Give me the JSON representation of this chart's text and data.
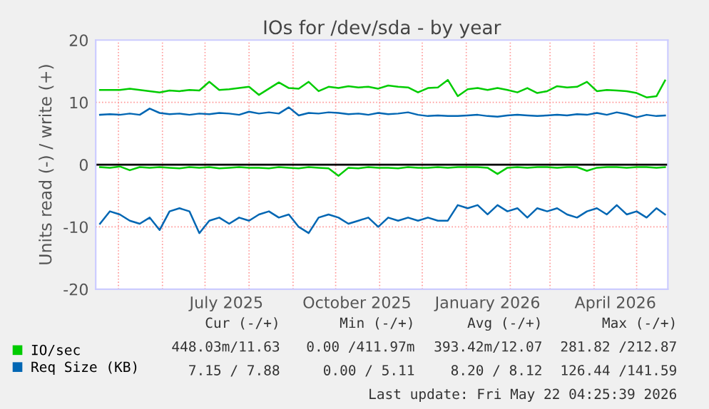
{
  "chart_data": {
    "type": "line",
    "title": "IOs for /dev/sda - by year",
    "ylabel": "Units read (-) / write (+)",
    "x": [
      "2025-04-18",
      "2025-04-25",
      "2025-05-02",
      "2025-05-09",
      "2025-05-16",
      "2025-05-23",
      "2025-05-30",
      "2025-06-06",
      "2025-06-13",
      "2025-06-20",
      "2025-06-27",
      "2025-07-04",
      "2025-07-11",
      "2025-07-18",
      "2025-07-25",
      "2025-08-01",
      "2025-08-08",
      "2025-08-15",
      "2025-08-22",
      "2025-08-29",
      "2025-09-05",
      "2025-09-12",
      "2025-09-19",
      "2025-09-26",
      "2025-10-03",
      "2025-10-10",
      "2025-10-17",
      "2025-10-24",
      "2025-10-31",
      "2025-11-07",
      "2025-11-14",
      "2025-11-21",
      "2025-11-28",
      "2025-12-05",
      "2025-12-12",
      "2025-12-19",
      "2025-12-26",
      "2026-01-02",
      "2026-01-09",
      "2026-01-16",
      "2026-01-23",
      "2026-01-30",
      "2026-02-06",
      "2026-02-13",
      "2026-02-20",
      "2026-02-27",
      "2026-03-06",
      "2026-03-13",
      "2026-03-20",
      "2026-03-27",
      "2026-04-03",
      "2026-04-10",
      "2026-04-17",
      "2026-04-24",
      "2026-05-01",
      "2026-05-08",
      "2026-05-15",
      "2026-05-21"
    ],
    "series": [
      {
        "name": "IO/sec",
        "color": "#00cc00",
        "values": [
          12,
          12,
          12,
          12.2,
          12,
          11.8,
          11.6,
          11.9,
          11.8,
          12,
          11.9,
          13.3,
          12,
          12.1,
          12.3,
          12.5,
          11.2,
          12.2,
          13.2,
          12.3,
          12.2,
          13.3,
          11.8,
          12.5,
          12.3,
          12.6,
          12.4,
          12.5,
          12.2,
          12.7,
          12.5,
          12.4,
          11.6,
          12.3,
          12.4,
          13.6,
          11,
          12.1,
          12.3,
          12,
          12.3,
          12,
          11.6,
          12.3,
          11.5,
          11.8,
          12.6,
          12.4,
          12.5,
          13.3,
          11.8,
          12,
          11.9,
          11.8,
          11.5,
          10.8,
          11,
          13.5
        ]
      },
      {
        "color": "#00cc00",
        "values": [
          -0.4,
          -0.5,
          -0.3,
          -0.9,
          -0.4,
          -0.5,
          -0.4,
          -0.5,
          -0.6,
          -0.4,
          -0.5,
          -0.4,
          -0.6,
          -0.5,
          -0.4,
          -0.5,
          -0.5,
          -0.6,
          -0.4,
          -0.5,
          -0.6,
          -0.4,
          -0.5,
          -0.6,
          -1.8,
          -0.5,
          -0.6,
          -0.4,
          -0.5,
          -0.5,
          -0.6,
          -0.4,
          -0.5,
          -0.5,
          -0.4,
          -0.5,
          -0.4,
          -0.4,
          -0.4,
          -0.5,
          -1.5,
          -0.5,
          -0.4,
          -0.5,
          -0.4,
          -0.4,
          -0.5,
          -0.4,
          -0.4,
          -1,
          -0.5,
          -0.4,
          -0.4,
          -0.5,
          -0.4,
          -0.4,
          -0.5,
          -0.4
        ]
      },
      {
        "name": "Req Size (KB)",
        "color": "#0066b3",
        "values": [
          8,
          8.1,
          8,
          8.2,
          8,
          9,
          8.3,
          8.1,
          8.2,
          8,
          8.2,
          8.1,
          8.3,
          8.2,
          8,
          8.5,
          8.2,
          8.4,
          8.2,
          9.2,
          7.9,
          8.3,
          8.2,
          8.4,
          8.3,
          8.1,
          8.2,
          8,
          8.3,
          8.1,
          8.2,
          8.4,
          8,
          7.8,
          7.9,
          7.8,
          7.8,
          7.9,
          8,
          7.8,
          7.7,
          7.9,
          8,
          7.9,
          7.8,
          7.9,
          8,
          7.9,
          8.1,
          8,
          8.3,
          8,
          8.4,
          8.1,
          7.6,
          8,
          7.8,
          7.9
        ]
      },
      {
        "color": "#0066b3",
        "values": [
          -9.5,
          -7.5,
          -8,
          -9,
          -9.5,
          -8.5,
          -10.5,
          -7.5,
          -7,
          -7.5,
          -11,
          -9,
          -8.5,
          -9.5,
          -8.5,
          -9,
          -8,
          -7.5,
          -8.5,
          -8,
          -10,
          -11,
          -8.5,
          -8,
          -8.5,
          -9.5,
          -9,
          -8.5,
          -10,
          -8.5,
          -9,
          -8.5,
          -9,
          -8.5,
          -9,
          -9,
          -6.5,
          -7,
          -6.5,
          -8,
          -6.5,
          -7.5,
          -7,
          -8.5,
          -7,
          -7.5,
          -7,
          -8,
          -8.5,
          -7.5,
          -7,
          -8,
          -6.5,
          -8,
          -7.5,
          -8.5,
          -7,
          -8
        ]
      }
    ],
    "xlim": [
      "2025-04-15",
      "2026-05-23"
    ],
    "xticks": [
      {
        "value": "2025-05-01",
        "label": null
      },
      {
        "value": "2025-06-01",
        "label": null
      },
      {
        "value": "2025-07-01",
        "label": null
      },
      {
        "value": "2025-07-16",
        "label": "July 2025"
      },
      {
        "value": "2025-08-01",
        "label": null
      },
      {
        "value": "2025-09-01",
        "label": null
      },
      {
        "value": "2025-10-01",
        "label": null
      },
      {
        "value": "2025-10-16",
        "label": "October 2025"
      },
      {
        "value": "2025-11-01",
        "label": null
      },
      {
        "value": "2025-12-01",
        "label": null
      },
      {
        "value": "2026-01-01",
        "label": null
      },
      {
        "value": "2026-01-16",
        "label": "January 2026"
      },
      {
        "value": "2026-02-01",
        "label": null
      },
      {
        "value": "2026-03-01",
        "label": null
      },
      {
        "value": "2026-04-01",
        "label": null
      },
      {
        "value": "2026-04-16",
        "label": "April 2026"
      },
      {
        "value": "2026-05-01",
        "label": null
      }
    ],
    "ylim": [
      -20,
      20
    ],
    "yticks": [
      -20,
      -10,
      0,
      10,
      20
    ],
    "ref_lines": [
      {
        "axis": "y",
        "value": 0,
        "color": "#000000"
      }
    ],
    "grid": true,
    "legend": "bottom",
    "line_style": "solid",
    "marker": "none",
    "annotations": [
      "Cur (-/+)",
      "Min (-/+)",
      "Avg (-/+)",
      "Max (-/+)",
      "448.03m/11.63",
      "0.00 /411.97m",
      "393.42m/12.07",
      "281.82 /212.87",
      "7.15 / 7.88",
      "0.00 / 5.11",
      "8.20 / 8.12",
      "126.44 /141.59",
      "Last update: Fri May 22 04:25:39 2026"
    ]
  }
}
